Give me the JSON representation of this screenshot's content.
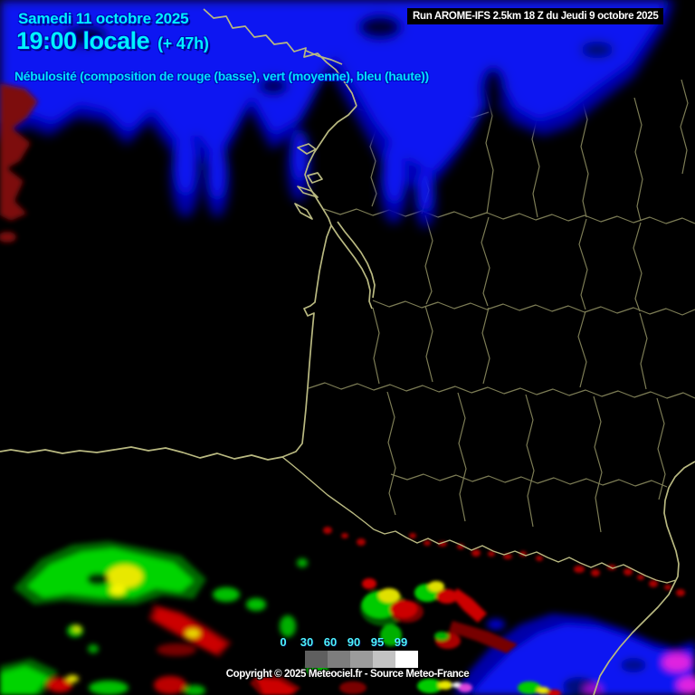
{
  "header": {
    "date": "Samedi 11 octobre 2025",
    "time": "19:00 locale",
    "forecast_offset": "(+ 47h)",
    "subtitle": "Nébulosité (composition de rouge (basse), vert (moyenne), bleu (haute))",
    "run_info": "Run AROME-IFS 2.5km 18 Z du Jeudi 9 octobre 2025"
  },
  "legend": {
    "labels": [
      "0",
      "30",
      "60",
      "90",
      "95",
      "99"
    ],
    "swatches": [
      "#5f5f5f",
      "#7d7d7d",
      "#9b9b9b",
      "#c3c3c3",
      "#ffffff"
    ]
  },
  "footer": {
    "copyright": "Copyright © 2025 Meteociel.fr - Source Meteo-France"
  },
  "map": {
    "colors": {
      "high_clouds_blue": "#0813f2",
      "high_clouds_fringe": "#0000a8",
      "mid_clouds_green": "#00d400",
      "low_clouds_red": "#cc0000",
      "low_clouds_dark_red": "#7d0808",
      "mixed_yellow": "#e8e800",
      "dense_magenta": "#e020e0",
      "coastline_olive": "#b9b981",
      "department_border_olive": "#83835a",
      "background": "#000000"
    }
  }
}
